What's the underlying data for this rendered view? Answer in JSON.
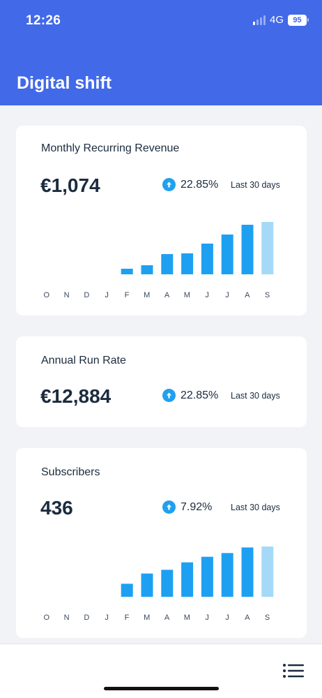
{
  "status_bar": {
    "time": "12:26",
    "network": "4G",
    "battery": "95",
    "signal_bars": 4,
    "signal_bars_on": 1
  },
  "app": {
    "title": "Digital shift"
  },
  "colors": {
    "accent": "#4169e8",
    "bar": "#1ea0f2",
    "bar_current": "#a5d9f8",
    "up_icon": "#21a0ee"
  },
  "cards": [
    {
      "title": "Monthly Recurring Revenue",
      "value": "€1,074",
      "change": "22.85%",
      "period": "Last 30 days",
      "icon": "arrow-up-circle-icon",
      "chart_data": {
        "type": "bar",
        "categories": [
          "O",
          "N",
          "D",
          "J",
          "F",
          "M",
          "A",
          "M",
          "J",
          "J",
          "A",
          "S"
        ],
        "values": [
          0,
          0,
          0,
          0,
          80,
          130,
          290,
          300,
          440,
          570,
          710,
          750
        ],
        "highlight_last": true,
        "ylim": [
          0,
          800
        ]
      }
    },
    {
      "title": "Annual Run Rate",
      "value": "€12,884",
      "change": "22.85%",
      "period": "Last 30 days",
      "icon": "arrow-up-circle-icon"
    },
    {
      "title": "Subscribers",
      "value": "436",
      "change": "7.92%",
      "period": "Last 30 days",
      "icon": "arrow-up-circle-icon",
      "chart_data": {
        "type": "bar",
        "categories": [
          "O",
          "N",
          "D",
          "J",
          "F",
          "M",
          "A",
          "M",
          "J",
          "J",
          "A",
          "S"
        ],
        "values": [
          0,
          0,
          0,
          0,
          140,
          250,
          290,
          370,
          430,
          470,
          530,
          540
        ],
        "highlight_last": true,
        "ylim": [
          0,
          600
        ]
      }
    }
  ],
  "bottom_bar": {
    "menu_icon": "list-menu-icon"
  }
}
